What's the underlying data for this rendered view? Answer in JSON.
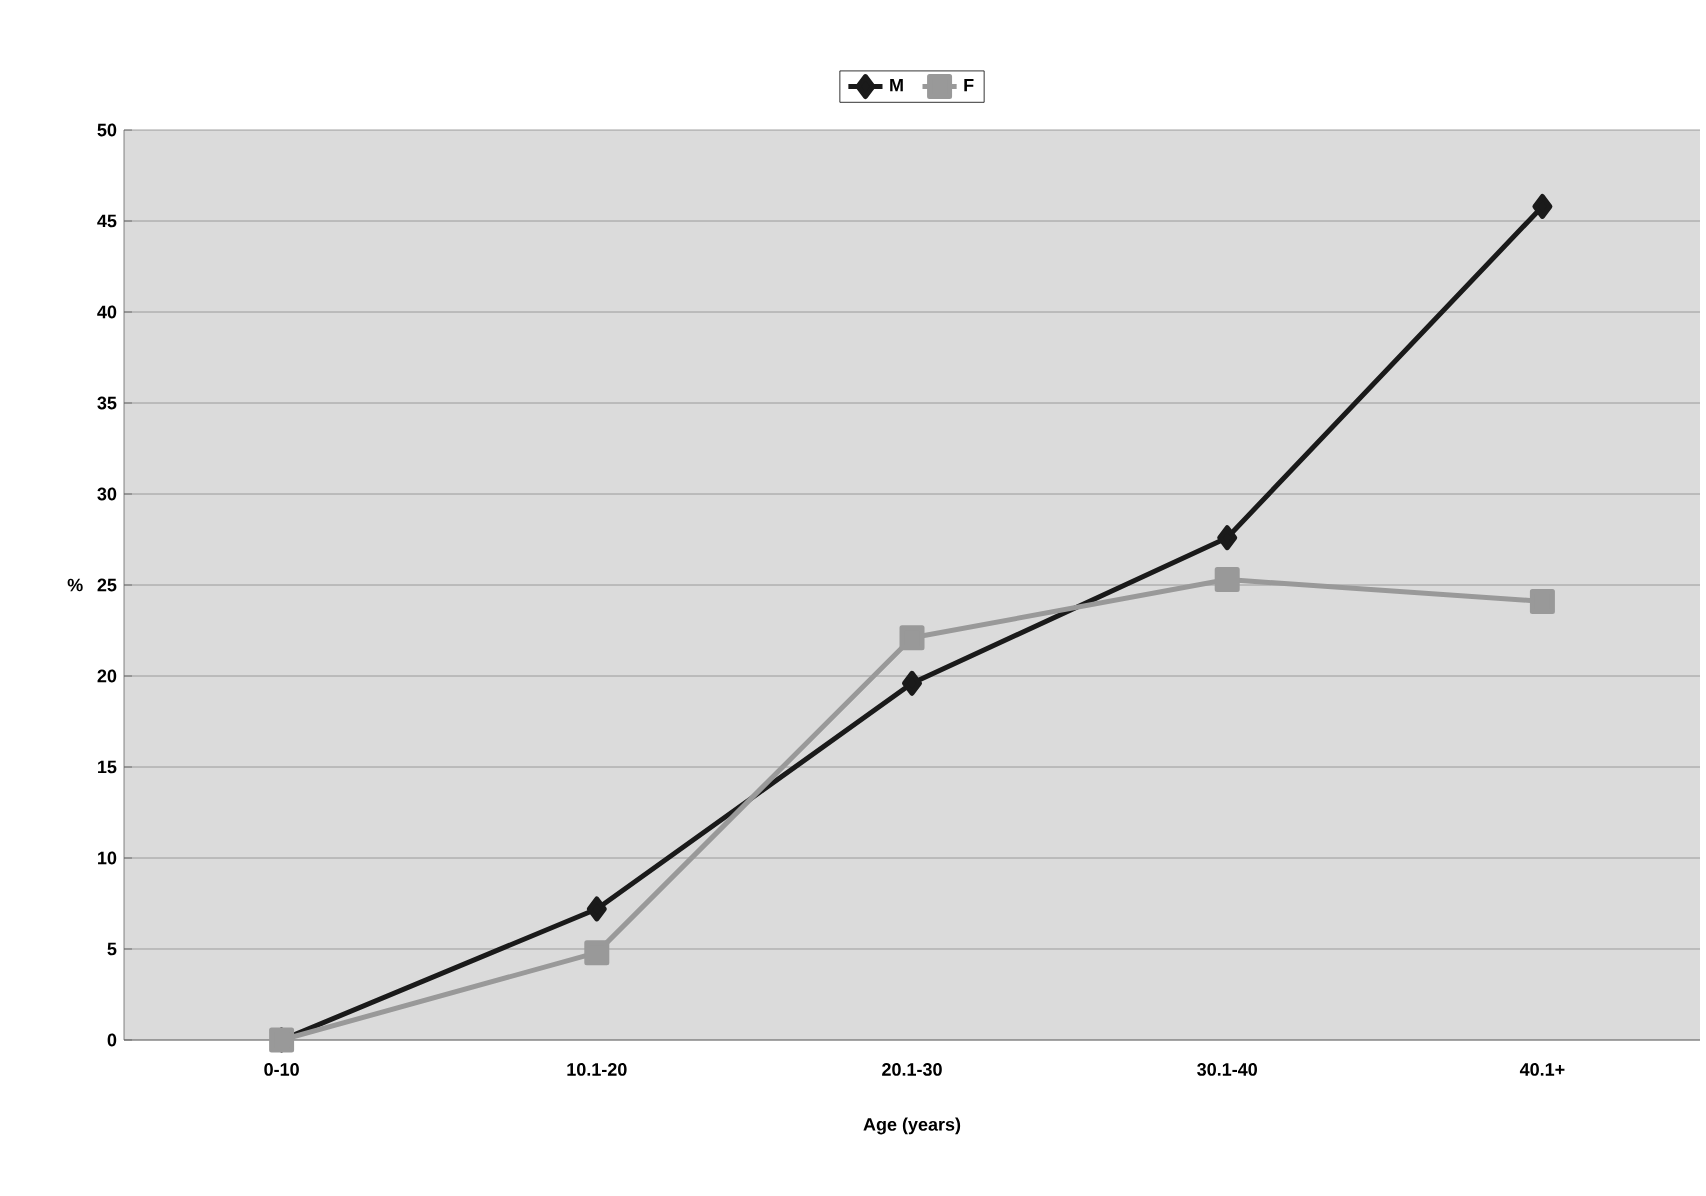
{
  "chart_data": {
    "type": "line",
    "xlabel": "Age (years)",
    "ylabel": "%",
    "categories": [
      "0-10",
      "10.1-20",
      "20.1-30",
      "30.1-40",
      "40.1+"
    ],
    "series": [
      {
        "name": "M",
        "color": "#1a1a1a",
        "marker": "diamond",
        "values": [
          0,
          7.2,
          19.6,
          27.6,
          45.8
        ]
      },
      {
        "name": "F",
        "color": "#999999",
        "marker": "square",
        "values": [
          0,
          4.8,
          22.1,
          25.3,
          24.1
        ]
      }
    ],
    "ylim": [
      0,
      50
    ],
    "yticks": [
      0,
      5,
      10,
      15,
      20,
      25,
      30,
      35,
      40,
      45,
      50
    ],
    "grid": "y",
    "legend": "top"
  }
}
